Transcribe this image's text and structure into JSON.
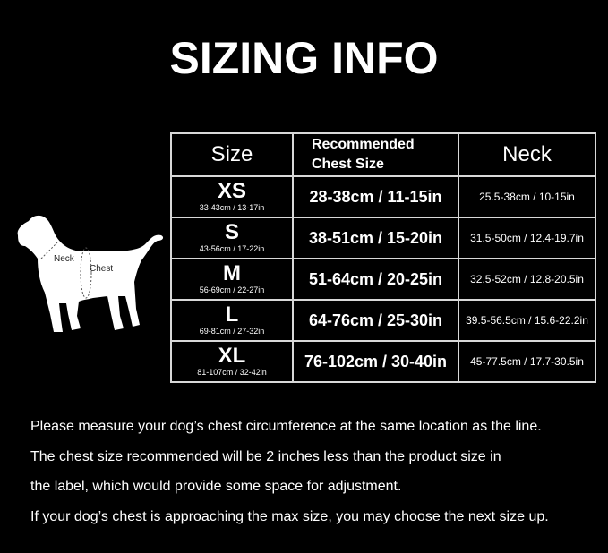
{
  "title": "SIZING INFO",
  "table": {
    "headers": {
      "size": "Size",
      "chest_line1": "Recommended",
      "chest_line2": "Chest Size",
      "neck": "Neck"
    },
    "rows": [
      {
        "size": "XS",
        "size_range": "33-43cm / 13-17in",
        "chest": "28-38cm / 11-15in",
        "neck": "25.5-38cm / 10-15in"
      },
      {
        "size": "S",
        "size_range": "43-56cm / 17-22in",
        "chest": "38-51cm / 15-20in",
        "neck": "31.5-50cm / 12.4-19.7in"
      },
      {
        "size": "M",
        "size_range": "56-69cm / 22-27in",
        "chest": "51-64cm / 20-25in",
        "neck": "32.5-52cm / 12.8-20.5in"
      },
      {
        "size": "L",
        "size_range": "69-81cm / 27-32in",
        "chest": "64-76cm / 25-30in",
        "neck": "39.5-56.5cm / 15.6-22.2in"
      },
      {
        "size": "XL",
        "size_range": "81-107cm / 32-42in",
        "chest": "76-102cm / 30-40in",
        "neck": "45-77.5cm / 17.7-30.5in"
      }
    ]
  },
  "dog": {
    "neck_label": "Neck",
    "chest_label": "Chest"
  },
  "notes": [
    "Please measure your dog’s chest circumference at the same location as the line.",
    "The chest size recommended will be 2 inches less than the product size in",
    "the label, which would provide some space for adjustment.",
    "If your dog’s chest is approaching the max size, you may choose the next size up."
  ]
}
